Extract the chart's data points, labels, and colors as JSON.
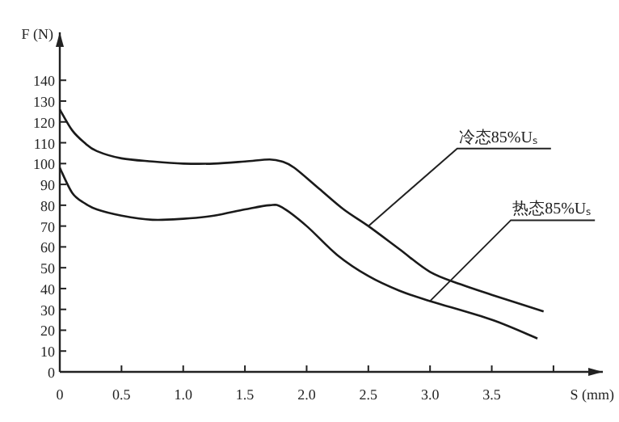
{
  "chart_data": {
    "type": "line",
    "xlabel": "S (mm)",
    "ylabel": "F (N)",
    "xlim": [
      0,
      4.4
    ],
    "ylim": [
      0,
      163
    ],
    "xticks": [
      0,
      0.5,
      {
        "value": 1,
        "label": "1.0"
      },
      1.5,
      {
        "value": 2,
        "label": "2.0"
      },
      2.5,
      {
        "value": 3,
        "label": "3.0"
      },
      3.5,
      {
        "value": 4,
        "label": null
      }
    ],
    "yticks": [
      0,
      10,
      20,
      30,
      40,
      50,
      60,
      70,
      80,
      90,
      100,
      110,
      120,
      130,
      140
    ],
    "grid": false,
    "marker": "none",
    "line_style": "solid",
    "series": [
      {
        "color": "#1a1a1a",
        "x": [
          0,
          0.1,
          0.2,
          0.3,
          0.5,
          0.75,
          1.0,
          1.25,
          1.5,
          1.7,
          1.8,
          1.9,
          2.1,
          2.3,
          2.5,
          2.75,
          3.0,
          3.25,
          3.5,
          3.92
        ],
        "values": [
          126,
          116,
          110,
          106,
          102.5,
          101,
          100,
          100,
          101,
          102,
          101,
          98,
          88,
          78,
          70,
          59,
          48,
          42,
          37,
          29
        ]
      },
      {
        "color": "#1a1a1a",
        "x": [
          0,
          0.1,
          0.2,
          0.3,
          0.5,
          0.75,
          1.0,
          1.25,
          1.5,
          1.7,
          1.8,
          2.0,
          2.25,
          2.5,
          2.75,
          3.0,
          3.5,
          3.87
        ],
        "values": [
          98,
          86,
          81,
          78,
          75,
          73,
          73.5,
          75,
          78,
          80,
          79,
          70,
          56,
          46,
          39,
          34,
          25,
          16
        ]
      }
    ],
    "annotations": [
      {
        "text": "冷态85%Uₛ",
        "x": 2.5,
        "y": 70
      },
      {
        "text": "热态85%Uₛ",
        "x": 3.0,
        "y": 34
      }
    ]
  }
}
